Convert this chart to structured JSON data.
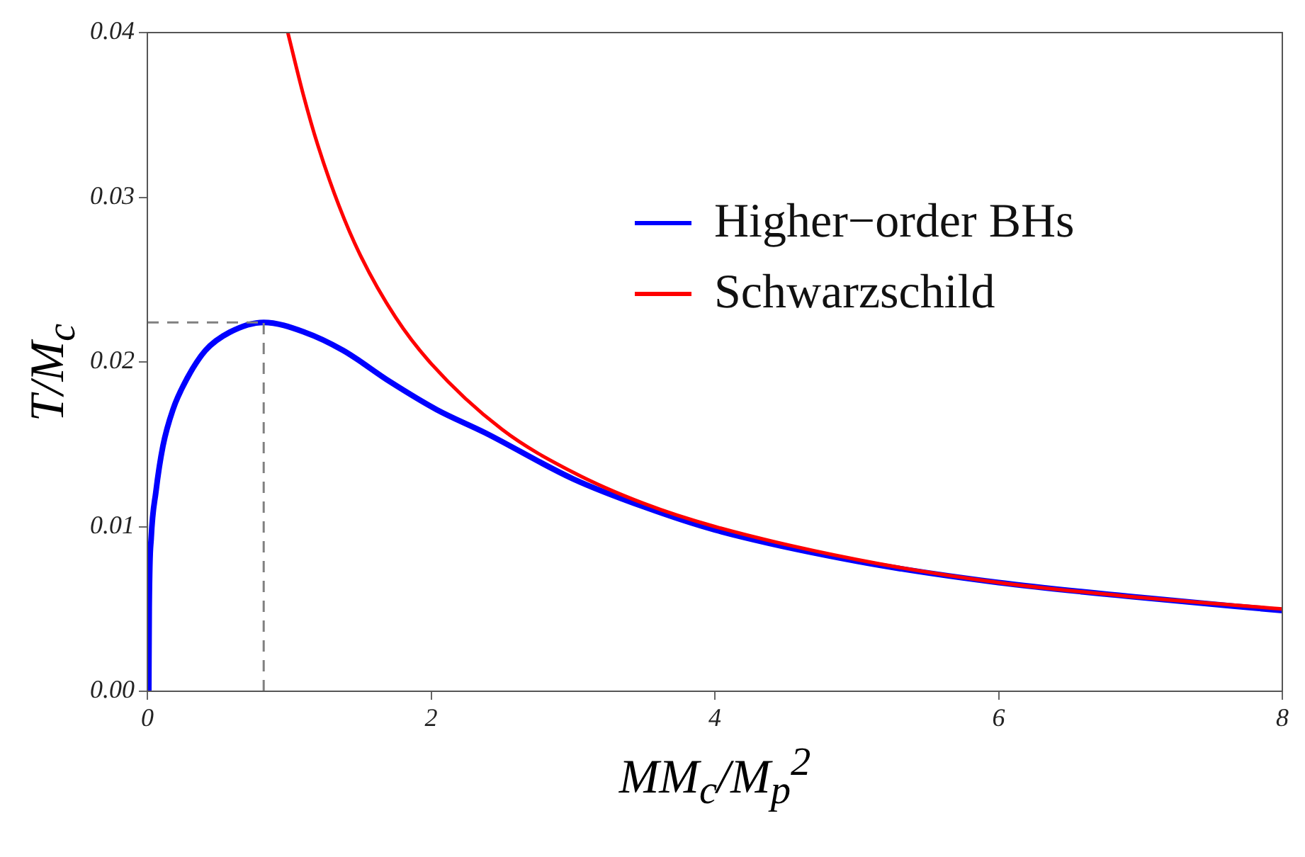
{
  "chart_data": {
    "type": "line",
    "xlabel": "MM$_{c}$/M$_{p}$$^{2}$",
    "ylabel": "T/M$_{c}$",
    "xlim": [
      0,
      8
    ],
    "xticks": [
      0,
      2,
      4,
      6,
      8
    ],
    "ylim": [
      0,
      0.04
    ],
    "yticks": [
      {
        "value": 0,
        "label": "0.00"
      },
      {
        "value": 0.01,
        "label": "0.01"
      },
      {
        "value": 0.02,
        "label": "0.02"
      },
      {
        "value": 0.03,
        "label": "0.03"
      },
      {
        "value": 0.04,
        "label": "0.04"
      }
    ],
    "grid": false,
    "legend": "top right",
    "marker": "none",
    "line_style": "solid",
    "series": [
      {
        "name": "Higher−order BHs",
        "color": "#0000ff",
        "x": [
          0.01,
          0.013,
          0.027,
          0.06,
          0.11,
          0.18,
          0.28,
          0.41,
          0.58,
          0.82,
          1.11,
          1.38,
          1.71,
          2.04,
          2.38,
          3,
          3.5,
          4,
          5,
          6,
          7,
          8
        ],
        "values": [
          0,
          0.0051,
          0.0093,
          0.0121,
          0.0149,
          0.0171,
          0.019,
          0.0207,
          0.0218,
          0.0224,
          0.0218,
          0.0207,
          0.0188,
          0.0171,
          0.0157,
          0.0129,
          0.0112,
          0.0098,
          0.0079,
          0.0066,
          0.0057,
          0.0049
        ]
      },
      {
        "name": "Schwarzschild",
        "color": "#ff0000",
        "x": [
          0.99,
          1.1,
          1.2,
          1.35,
          1.5,
          1.75,
          2,
          2.5,
          3,
          3.5,
          4,
          5,
          6,
          7,
          8
        ],
        "values": [
          0.04,
          0.0362,
          0.0332,
          0.0295,
          0.0265,
          0.0227,
          0.0199,
          0.0159,
          0.0133,
          0.0114,
          0.01,
          0.008,
          0.0066,
          0.0057,
          0.005
        ]
      }
    ],
    "ref_lines": [
      {
        "axis": "x",
        "value": 0.82,
        "color": "#808080",
        "line_style": "dashed"
      },
      {
        "axis": "y",
        "value": 0.0224,
        "color": "#808080",
        "line_style": "dashed"
      }
    ]
  }
}
